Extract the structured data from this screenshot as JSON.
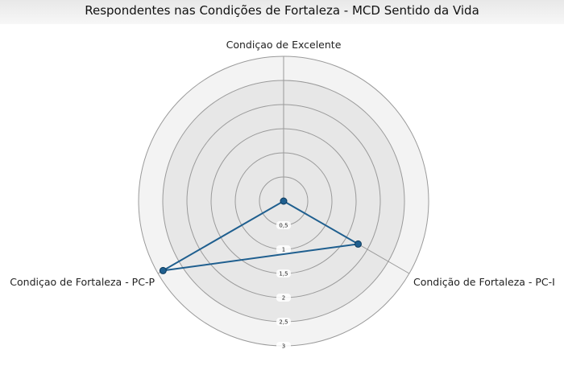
{
  "chart_data": {
    "type": "radar",
    "title": "Respondentes nas Condições de Fortaleza - MCD Sentido da Vida",
    "axes": [
      "Condiçao de Excelente",
      "Condição de Fortaleza - PC-I",
      "Condiçao de Fortaleza - PC-P"
    ],
    "series": [
      {
        "values": [
          0,
          1.78,
          2.88
        ]
      }
    ],
    "rlim": [
      0,
      3
    ],
    "ticks": [
      0.5,
      1,
      1.5,
      2,
      2.5,
      3
    ],
    "tick_labels": [
      "0,5",
      "1",
      "1,5",
      "2",
      "2,5",
      "3"
    ],
    "series_color": "#1f5f8f",
    "grid": true,
    "legend": "none"
  }
}
